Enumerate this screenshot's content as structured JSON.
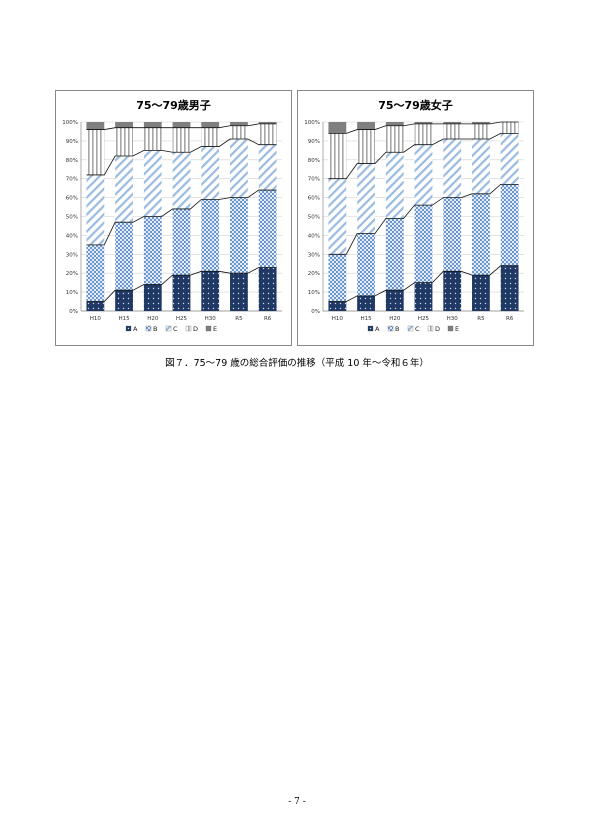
{
  "figure": {
    "caption": "図７．75～79 歳の総合評価の推移（平成 10 年～令和６年）"
  },
  "page_number": "- 7 -",
  "colors": {
    "A": "#1f3864",
    "B": "#6a95cc",
    "C": "#9bbbe0",
    "D": "#a6a6a6",
    "E": "#7f7f7f"
  },
  "chart_data": [
    {
      "type": "bar",
      "stacked": true,
      "title": "75～79歳男子",
      "categories": [
        "H10",
        "H15",
        "H20",
        "H25",
        "H30",
        "R5",
        "R6"
      ],
      "yticks": [
        "0%",
        "10%",
        "20%",
        "30%",
        "40%",
        "50%",
        "60%",
        "70%",
        "80%",
        "90%",
        "100%"
      ],
      "ylim": [
        0,
        100
      ],
      "legend_position": "bottom",
      "series": [
        {
          "name": "A",
          "values": [
            5,
            11,
            14,
            19,
            21,
            20,
            23
          ]
        },
        {
          "name": "B",
          "values": [
            30,
            36,
            36,
            35,
            38,
            40,
            41
          ]
        },
        {
          "name": "C",
          "values": [
            37,
            35,
            35,
            30,
            28,
            31,
            24
          ]
        },
        {
          "name": "D",
          "values": [
            24,
            15,
            12,
            13,
            10,
            7,
            11
          ]
        },
        {
          "name": "E",
          "values": [
            4,
            3,
            3,
            3,
            3,
            2,
            1
          ]
        }
      ]
    },
    {
      "type": "bar",
      "stacked": true,
      "title": "75～79歳女子",
      "categories": [
        "H10",
        "H15",
        "H20",
        "H25",
        "H30",
        "R5",
        "R6"
      ],
      "yticks": [
        "0%",
        "10%",
        "20%",
        "30%",
        "40%",
        "50%",
        "60%",
        "70%",
        "80%",
        "90%",
        "100%"
      ],
      "ylim": [
        0,
        100
      ],
      "legend_position": "bottom",
      "series": [
        {
          "name": "A",
          "values": [
            5,
            8,
            11,
            15,
            21,
            19,
            24
          ]
        },
        {
          "name": "B",
          "values": [
            25,
            33,
            38,
            41,
            39,
            43,
            43
          ]
        },
        {
          "name": "C",
          "values": [
            40,
            37,
            35,
            32,
            31,
            29,
            27
          ]
        },
        {
          "name": "D",
          "values": [
            24,
            18,
            14,
            11,
            8,
            8,
            6
          ]
        },
        {
          "name": "E",
          "values": [
            6,
            4,
            2,
            1,
            1,
            1,
            0
          ]
        }
      ]
    }
  ]
}
